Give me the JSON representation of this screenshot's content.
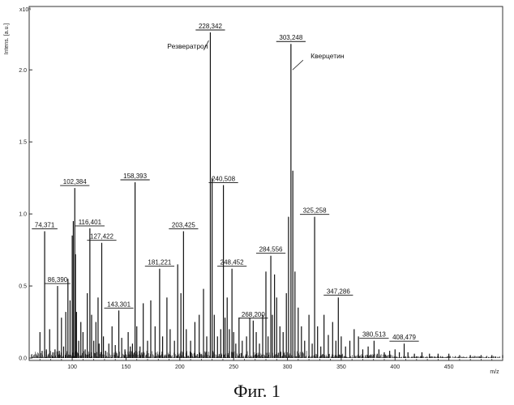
{
  "chart_data": {
    "type": "line",
    "title": "",
    "xlabel": "m/z",
    "ylabel": "Intens. [a.u.]",
    "y_multiplier": "x10⁴",
    "xlim": [
      60,
      500
    ],
    "ylim": [
      0,
      2.35
    ],
    "x_ticks": [
      100,
      150,
      200,
      250,
      300,
      350,
      400,
      450
    ],
    "y_ticks": [
      0.0,
      0.5,
      1.0,
      1.5,
      2.0
    ],
    "x_tick_labels": [
      "100",
      "150",
      "200",
      "250",
      "300",
      "350",
      "400",
      "450"
    ],
    "y_tick_labels": [
      "0.0",
      "0.5",
      "1.0",
      "1.5",
      "2.0"
    ],
    "grid": false,
    "legend": "none",
    "series": [
      {
        "x": [
          70,
          72,
          74.371,
          76,
          79,
          82,
          84,
          86.39,
          88,
          90,
          92,
          94,
          96,
          98,
          100,
          101,
          102.384,
          103,
          104,
          106,
          108,
          110,
          112,
          114,
          116.401,
          118,
          120,
          122,
          124,
          125,
          127.422,
          129,
          131,
          134,
          137,
          140,
          143.301,
          146,
          149,
          152,
          154,
          156,
          158.393,
          160,
          163,
          166,
          170,
          173,
          177,
          181.221,
          184,
          188,
          191,
          195,
          198,
          201,
          203.425,
          206,
          210,
          214,
          218,
          222,
          225,
          228.342,
          230,
          232,
          235,
          238,
          240.508,
          242,
          244,
          246,
          248.452,
          250,
          252,
          255,
          258,
          262,
          265,
          268.2,
          271,
          274,
          277,
          280,
          282,
          284.556,
          286,
          288,
          290,
          293,
          296,
          299,
          301,
          303.248,
          305,
          307,
          310,
          313,
          316,
          320,
          323,
          325.258,
          328,
          331,
          334,
          338,
          342,
          345,
          347.286,
          350,
          354,
          358,
          362,
          366,
          370,
          375,
          380.513,
          385,
          390,
          395,
          400,
          404,
          408.479,
          412,
          418,
          425,
          432,
          440,
          450,
          460,
          470,
          480,
          490,
          500
        ],
        "y": [
          0.18,
          0.05,
          0.88,
          0.06,
          0.2,
          0.04,
          0.06,
          0.5,
          0.05,
          0.28,
          0.08,
          0.32,
          0.55,
          0.4,
          0.85,
          0.95,
          1.18,
          0.72,
          0.32,
          0.12,
          0.25,
          0.18,
          0.06,
          0.45,
          0.9,
          0.3,
          0.12,
          0.25,
          0.42,
          0.1,
          0.8,
          0.15,
          0.05,
          0.1,
          0.22,
          0.09,
          0.33,
          0.14,
          0.06,
          0.18,
          0.08,
          0.1,
          1.22,
          0.22,
          0.08,
          0.38,
          0.12,
          0.4,
          0.22,
          0.62,
          0.15,
          0.42,
          0.2,
          0.12,
          0.65,
          0.45,
          0.88,
          0.2,
          0.12,
          0.25,
          0.3,
          0.48,
          0.15,
          2.26,
          1.25,
          0.3,
          0.15,
          0.2,
          1.2,
          0.28,
          0.42,
          0.2,
          0.62,
          0.18,
          0.1,
          0.28,
          0.12,
          0.15,
          0.28,
          0.26,
          0.18,
          0.1,
          0.3,
          0.6,
          0.15,
          0.71,
          0.3,
          0.58,
          0.42,
          0.22,
          0.18,
          0.45,
          0.98,
          2.18,
          1.3,
          0.6,
          0.35,
          0.22,
          0.12,
          0.3,
          0.1,
          0.98,
          0.22,
          0.08,
          0.3,
          0.16,
          0.25,
          0.12,
          0.42,
          0.15,
          0.08,
          0.12,
          0.2,
          0.15,
          0.06,
          0.08,
          0.12,
          0.06,
          0.04,
          0.05,
          0.06,
          0.04,
          0.1,
          0.04,
          0.03,
          0.04,
          0.03,
          0.03,
          0.03,
          0.02,
          0.02,
          0.02,
          0.02,
          0.02
        ]
      }
    ],
    "peak_labels": [
      {
        "mz": 74.371,
        "label": "74,371",
        "intensity": 0.88
      },
      {
        "mz": 86.39,
        "label": "86,390",
        "intensity": 0.5
      },
      {
        "mz": 102.384,
        "label": "102,384",
        "intensity": 1.18
      },
      {
        "mz": 116.401,
        "label": "116,401",
        "intensity": 0.9
      },
      {
        "mz": 127.422,
        "label": "127,422",
        "intensity": 0.8
      },
      {
        "mz": 143.301,
        "label": "143,301",
        "intensity": 0.33
      },
      {
        "mz": 158.393,
        "label": "158,393",
        "intensity": 1.22
      },
      {
        "mz": 181.221,
        "label": "181,221",
        "intensity": 0.62
      },
      {
        "mz": 203.425,
        "label": "203,425",
        "intensity": 0.88
      },
      {
        "mz": 228.342,
        "label": "228,342",
        "intensity": 2.26
      },
      {
        "mz": 240.508,
        "label": "240,508",
        "intensity": 1.2
      },
      {
        "mz": 248.452,
        "label": "248,452",
        "intensity": 0.62
      },
      {
        "mz": 268.2,
        "label": "268,200",
        "intensity": 0.26
      },
      {
        "mz": 284.556,
        "label": "284,556",
        "intensity": 0.71
      },
      {
        "mz": 303.248,
        "label": "303,248",
        "intensity": 2.18
      },
      {
        "mz": 325.258,
        "label": "325,258",
        "intensity": 0.98
      },
      {
        "mz": 347.286,
        "label": "347,286",
        "intensity": 0.42
      },
      {
        "mz": 380.513,
        "label": "380,513",
        "intensity": 0.12
      },
      {
        "mz": 408.479,
        "label": "408,479",
        "intensity": 0.1
      }
    ],
    "annotations": [
      {
        "text": "Резвератрол",
        "mz": 228.342
      },
      {
        "text": "Кверцетин",
        "mz": 303.248
      }
    ],
    "caption": "Фиг. 1"
  }
}
